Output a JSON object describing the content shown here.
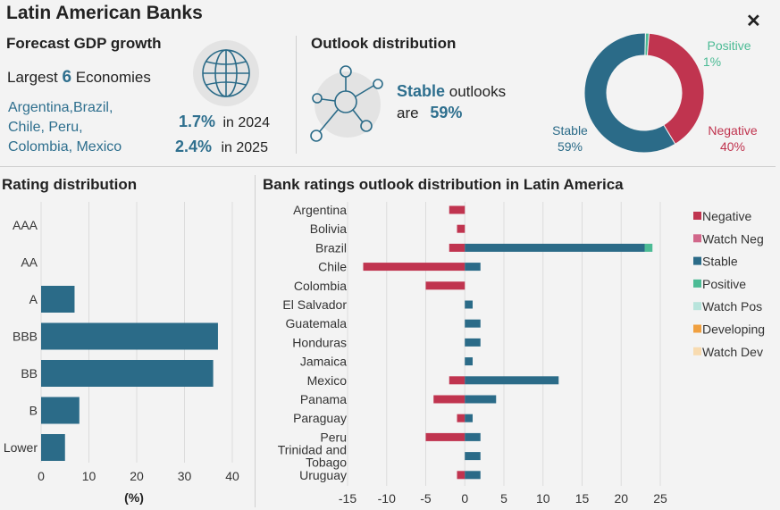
{
  "title": "Latin American Banks",
  "gdp": {
    "heading": "Forecast GDP growth",
    "largest_prefix": "Largest",
    "largest_num": "6",
    "largest_suffix": "Economies",
    "countries_1": "Argentina,Brazil,",
    "countries_2": "Chile, Peru,",
    "countries_3": "Colombia, Mexico",
    "val_2024": "1.7%",
    "lbl_2024": "in 2024",
    "val_2025": "2.4%",
    "lbl_2025": "in 2025",
    "icon": "globe-icon"
  },
  "outlook": {
    "heading": "Outlook distribution",
    "stable_word": "Stable",
    "outlooks_word": "outlooks",
    "are_word": "are",
    "stable_pct": "59%",
    "icon": "network-icon"
  },
  "colors": {
    "negative": "#c0344f",
    "watch_neg": "#d1678a",
    "stable": "#2b6b88",
    "positive": "#4cbb95",
    "watch_pos": "#b8e4dc",
    "developing": "#f0a040",
    "watch_dev": "#f8dbb0"
  },
  "chart_data": [
    {
      "type": "pie",
      "title": "",
      "slices": [
        {
          "label": "Stable",
          "pct_label": "59%",
          "value": 59
        },
        {
          "label": "Negative",
          "pct_label": "40%",
          "value": 40
        },
        {
          "label": "Positive",
          "pct_label": "1%",
          "value": 1
        }
      ]
    },
    {
      "type": "bar",
      "title": "Rating distribution",
      "orientation": "horizontal",
      "categories": [
        "AAA",
        "AA",
        "A",
        "BBB",
        "BB",
        "B",
        "Lower"
      ],
      "values": [
        0,
        0,
        7,
        37,
        36,
        8,
        5
      ],
      "xlabel": "(%)",
      "xlim": [
        0,
        40
      ],
      "xticks": [
        "0",
        "10",
        "20",
        "30",
        "40"
      ]
    },
    {
      "type": "bar",
      "title": "Bank ratings outlook distribution in Latin America",
      "orientation": "horizontal",
      "stacked": true,
      "categories": [
        "Argentina",
        "Bolivia",
        "Brazil",
        "Chile",
        "Colombia",
        "El Salvador",
        "Guatemala",
        "Honduras",
        "Jamaica",
        "Mexico",
        "Panama",
        "Paraguay",
        "Peru",
        "Trinidad and Tobago",
        "Uruguay"
      ],
      "series": [
        {
          "name": "Negative",
          "values": [
            -2,
            -1,
            -2,
            -13,
            -5,
            0,
            0,
            0,
            0,
            -2,
            -4,
            -1,
            -5,
            0,
            -1
          ]
        },
        {
          "name": "Watch Neg",
          "values": [
            0,
            0,
            0,
            0,
            0,
            0,
            0,
            0,
            0,
            0,
            0,
            0,
            0,
            0,
            0
          ]
        },
        {
          "name": "Stable",
          "values": [
            0,
            0,
            23,
            2,
            0,
            1,
            2,
            2,
            1,
            12,
            4,
            1,
            2,
            2,
            2
          ]
        },
        {
          "name": "Positive",
          "values": [
            0,
            0,
            1,
            0,
            0,
            0,
            0,
            0,
            0,
            0,
            0,
            0,
            0,
            0,
            0
          ]
        },
        {
          "name": "Watch Pos",
          "values": [
            0,
            0,
            0,
            0,
            0,
            0,
            0,
            0,
            0,
            0,
            0,
            0,
            0,
            0,
            0
          ]
        },
        {
          "name": "Developing",
          "values": [
            0,
            0,
            0,
            0,
            0,
            0,
            0,
            0,
            0,
            0,
            0,
            0,
            0,
            0,
            0
          ]
        },
        {
          "name": "Watch Dev",
          "values": [
            0,
            0,
            0,
            0,
            0,
            0,
            0,
            0,
            0,
            0,
            0,
            0,
            0,
            0,
            0
          ]
        }
      ],
      "xlim": [
        -15,
        25
      ],
      "xticks": [
        "-15",
        "-10",
        "-5",
        "0",
        "5",
        "10",
        "15",
        "20",
        "25"
      ],
      "legend_position": "right"
    }
  ]
}
